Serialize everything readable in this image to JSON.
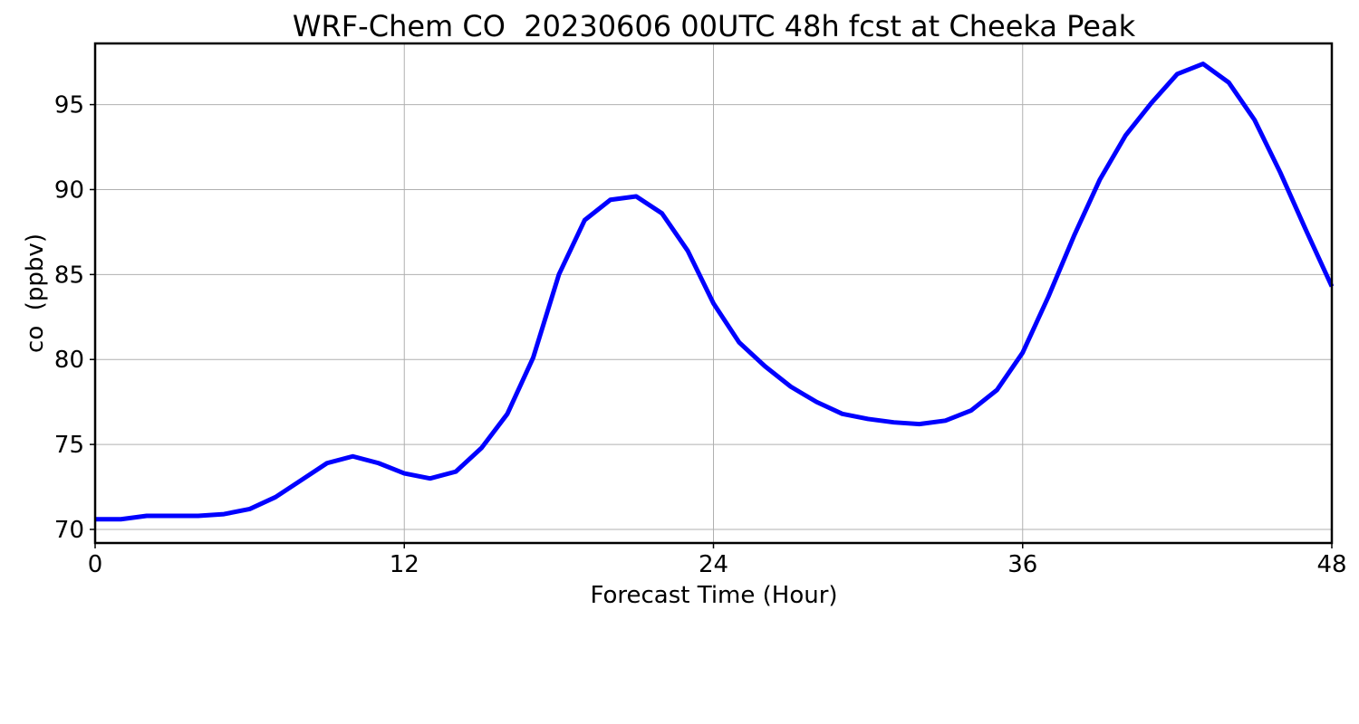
{
  "chart_data": {
    "type": "line",
    "title": "WRF-Chem CO  20230606 00UTC 48h fcst at Cheeka Peak",
    "xlabel": "Forecast Time (Hour)",
    "ylabel": "co  (ppbv)",
    "xlim": [
      0,
      48
    ],
    "ylim": [
      69.2,
      98.6
    ],
    "xticks": [
      0,
      12,
      24,
      36,
      48
    ],
    "yticks": [
      70,
      75,
      80,
      85,
      90,
      95
    ],
    "grid": true,
    "series_color": "#0000ff",
    "series": [
      {
        "x": [
          0,
          1,
          2,
          3,
          4,
          5,
          6,
          7,
          8,
          9,
          10,
          11,
          12,
          13,
          14,
          15,
          16,
          17,
          18,
          19,
          20,
          21,
          22,
          23,
          24,
          25,
          26,
          27,
          28,
          29,
          30,
          31,
          32,
          33,
          34,
          35,
          36,
          37,
          38,
          39,
          40,
          41,
          42,
          43,
          44,
          45,
          46,
          47,
          48
        ],
        "values": [
          70.6,
          70.6,
          70.8,
          70.8,
          70.8,
          70.9,
          71.2,
          71.9,
          72.9,
          73.9,
          74.3,
          73.9,
          73.3,
          73.0,
          73.4,
          74.8,
          76.8,
          80.1,
          85.0,
          88.2,
          89.4,
          89.6,
          88.6,
          86.4,
          83.3,
          81.0,
          79.6,
          78.4,
          77.5,
          76.8,
          76.5,
          76.3,
          76.2,
          76.4,
          77.0,
          78.2,
          80.4,
          83.7,
          87.3,
          90.6,
          93.2,
          95.1,
          96.8,
          97.4,
          96.3,
          94.1,
          91.0,
          87.6,
          84.3
        ]
      }
    ]
  }
}
